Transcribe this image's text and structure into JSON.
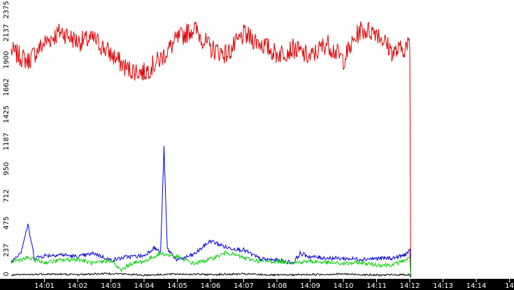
{
  "chart_data": {
    "type": "line",
    "xlabel": "",
    "ylabel": "",
    "x_range": [
      "14:00",
      "14:15"
    ],
    "x_ticks": [
      "14:01",
      "14:02",
      "14:03",
      "14:04",
      "14:05",
      "14:06",
      "14:07",
      "14:08",
      "14:09",
      "14:10",
      "14:11",
      "14:12",
      "14:13",
      "14:14",
      "14"
    ],
    "y_ticks": [
      "0",
      "237",
      "475",
      "712",
      "950",
      "1187",
      "1425",
      "1662",
      "1900",
      "2137",
      "2375"
    ],
    "ylim": [
      0,
      2375
    ],
    "grid": false,
    "legend": "none",
    "series": [
      {
        "color": "#e00000",
        "x": [
          0.0,
          0.5,
          1.0,
          1.5,
          2.0,
          2.5,
          3.0,
          3.5,
          4.0,
          4.5,
          5.0,
          5.5,
          6.0,
          6.5,
          7.0,
          7.5,
          8.0,
          8.5,
          9.0,
          9.5,
          10.0,
          10.5,
          11.0,
          11.5,
          12.0,
          12.03
        ],
        "values": [
          1980,
          1890,
          2050,
          2150,
          2060,
          2080,
          1950,
          1820,
          1790,
          1910,
          2080,
          2180,
          2000,
          1950,
          2120,
          2050,
          1950,
          2000,
          1920,
          2050,
          1900,
          2160,
          2150,
          1960,
          2030,
          0
        ]
      },
      {
        "color": "#0000e0",
        "x": [
          0.0,
          0.3,
          0.5,
          0.7,
          1.0,
          1.5,
          2.0,
          2.5,
          3.0,
          3.5,
          4.0,
          4.3,
          4.5,
          4.6,
          4.7,
          5.0,
          5.5,
          6.0,
          6.5,
          7.0,
          7.5,
          8.0,
          8.5,
          8.7,
          9.0,
          9.5,
          10.0,
          10.5,
          11.0,
          11.5,
          11.8,
          12.0,
          12.03
        ],
        "values": [
          130,
          230,
          460,
          170,
          190,
          200,
          180,
          210,
          150,
          180,
          190,
          260,
          220,
          1130,
          250,
          150,
          200,
          320,
          260,
          240,
          160,
          150,
          130,
          210,
          180,
          170,
          165,
          160,
          165,
          170,
          190,
          230,
          0
        ]
      },
      {
        "color": "#00d000",
        "x": [
          0.0,
          0.5,
          1.0,
          1.5,
          2.0,
          2.5,
          3.0,
          3.3,
          3.6,
          4.0,
          4.5,
          5.0,
          5.5,
          6.0,
          6.5,
          7.0,
          7.5,
          8.0,
          8.5,
          9.0,
          9.5,
          10.0,
          10.5,
          11.0,
          11.5,
          12.0,
          12.03
        ],
        "values": [
          140,
          170,
          130,
          150,
          160,
          120,
          150,
          60,
          120,
          140,
          210,
          180,
          120,
          160,
          220,
          170,
          140,
          140,
          130,
          140,
          130,
          120,
          130,
          110,
          110,
          170,
          0
        ]
      },
      {
        "color": "#000000",
        "x": [
          0.0,
          1.0,
          2.0,
          3.0,
          4.0,
          5.0,
          6.0,
          7.0,
          8.0,
          9.0,
          10.0,
          11.0,
          12.0,
          12.03
        ],
        "values": [
          20,
          30,
          25,
          35,
          20,
          30,
          25,
          30,
          20,
          25,
          30,
          20,
          25,
          0
        ]
      }
    ]
  }
}
